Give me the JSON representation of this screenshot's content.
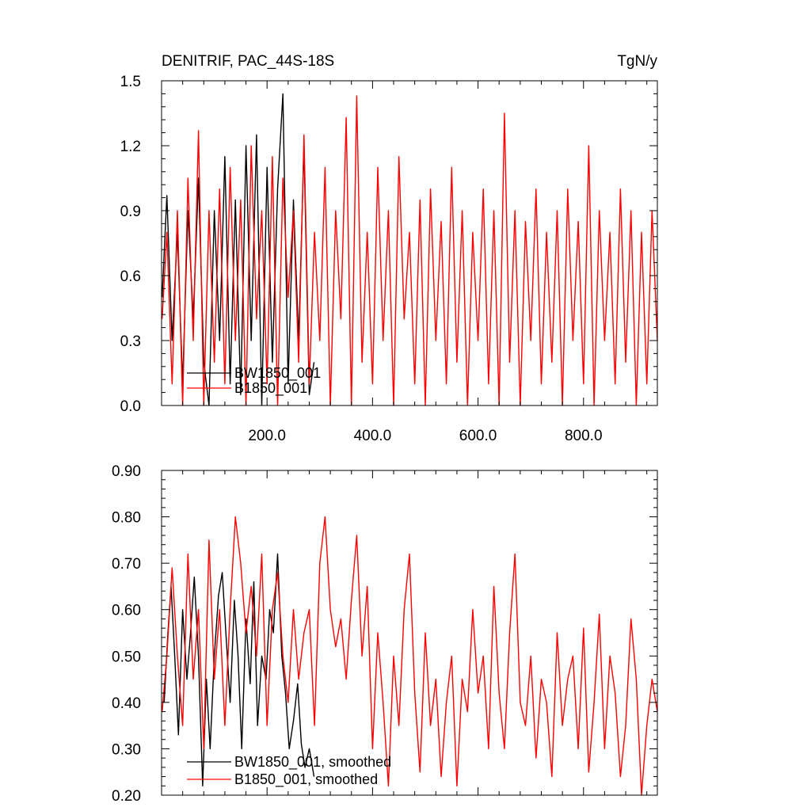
{
  "chart_data": [
    {
      "type": "line",
      "title_left": "DENITRIF, PAC_44S-18S",
      "title_right": "TgN/y",
      "xlim": [
        0,
        940
      ],
      "ylim": [
        0.0,
        1.5
      ],
      "x_ticks": [
        200,
        400,
        600,
        800
      ],
      "x_tick_labels": [
        "200.0",
        "400.0",
        "600.0",
        "800.0"
      ],
      "y_ticks": [
        0.0,
        0.3,
        0.6,
        0.9,
        1.2,
        1.5
      ],
      "y_tick_labels": [
        "0.0",
        "0.3",
        "0.6",
        "0.9",
        "1.2",
        "1.5"
      ],
      "legend": [
        "BW1850_001",
        "B1850_001"
      ],
      "legend_position": "bottom-left",
      "series": [
        {
          "name": "BW1850_001",
          "color": "#000000",
          "x": [
            1,
            10,
            20,
            30,
            40,
            50,
            60,
            70,
            80,
            90,
            100,
            110,
            120,
            130,
            140,
            150,
            160,
            170,
            180,
            190,
            200,
            210,
            220,
            230,
            240,
            250,
            260,
            270,
            280,
            289
          ],
          "values": [
            0.5,
            0.97,
            0.3,
            0.8,
            0.1,
            0.9,
            0.4,
            1.05,
            0.2,
            0.0,
            0.9,
            0.3,
            1.15,
            0.1,
            0.95,
            0.05,
            1.2,
            0.3,
            1.25,
            0.0,
            1.1,
            0.2,
            1.0,
            1.44,
            0.1,
            0.95,
            0.3,
            1.2,
            0.05,
            0.2
          ]
        },
        {
          "name": "B1850_001",
          "color": "#ff0000",
          "x": [
            1,
            10,
            20,
            30,
            40,
            50,
            60,
            70,
            80,
            90,
            100,
            110,
            120,
            130,
            140,
            150,
            160,
            170,
            180,
            190,
            200,
            210,
            220,
            230,
            240,
            250,
            260,
            270,
            280,
            290,
            300,
            310,
            320,
            330,
            340,
            350,
            360,
            370,
            380,
            390,
            400,
            410,
            420,
            430,
            440,
            450,
            460,
            470,
            480,
            490,
            500,
            510,
            520,
            530,
            540,
            550,
            560,
            570,
            580,
            590,
            600,
            610,
            620,
            630,
            640,
            650,
            660,
            670,
            680,
            690,
            700,
            710,
            720,
            730,
            740,
            750,
            760,
            770,
            780,
            790,
            800,
            810,
            820,
            830,
            840,
            850,
            860,
            870,
            880,
            890,
            900,
            910,
            920,
            930,
            940
          ],
          "values": [
            0.4,
            0.8,
            0.1,
            0.9,
            0.0,
            1.05,
            0.3,
            1.27,
            0.0,
            0.9,
            0.2,
            1.0,
            0.1,
            1.1,
            0.3,
            0.95,
            0.0,
            1.2,
            0.4,
            0.9,
            0.1,
            1.15,
            0.0,
            1.05,
            0.5,
            0.9,
            0.2,
            1.25,
            0.1,
            0.8,
            0.3,
            1.1,
            0.0,
            0.9,
            0.4,
            1.33,
            0.0,
            1.43,
            0.2,
            0.8,
            0.1,
            1.1,
            0.3,
            0.9,
            0.0,
            1.15,
            0.4,
            0.8,
            0.1,
            0.95,
            0.0,
            1.0,
            0.3,
            0.85,
            0.1,
            1.1,
            0.2,
            0.9,
            0.0,
            0.8,
            0.3,
            1.0,
            0.1,
            0.9,
            0.0,
            1.35,
            0.2,
            0.9,
            0.0,
            0.85,
            0.3,
            1.0,
            0.1,
            0.8,
            0.2,
            0.9,
            0.0,
            1.0,
            0.3,
            0.85,
            0.1,
            1.2,
            0.0,
            0.9,
            0.3,
            0.8,
            0.1,
            1.0,
            0.2,
            0.9,
            0.0,
            0.8,
            0.1,
            0.9,
            0.3
          ]
        }
      ]
    },
    {
      "type": "line",
      "xlim": [
        0,
        940
      ],
      "ylim": [
        0.2,
        0.9
      ],
      "y_ticks": [
        0.2,
        0.3,
        0.4,
        0.5,
        0.6,
        0.7,
        0.8,
        0.9
      ],
      "y_tick_labels": [
        "0.20",
        "0.30",
        "0.40",
        "0.50",
        "0.60",
        "0.70",
        "0.80",
        "0.90"
      ],
      "legend": [
        "BW1850_001, smoothed",
        "B1850_001, smoothed"
      ],
      "legend_position": "bottom-left",
      "series": [
        {
          "name": "BW1850_001, smoothed",
          "color": "#000000",
          "x": [
            5,
            12,
            18,
            25,
            32,
            40,
            48,
            55,
            62,
            70,
            78,
            85,
            92,
            100,
            108,
            115,
            122,
            130,
            138,
            145,
            152,
            160,
            168,
            175,
            182,
            190,
            198,
            205,
            212,
            220,
            228,
            235,
            242,
            250,
            258,
            265,
            272,
            280,
            289
          ],
          "values": [
            0.4,
            0.55,
            0.65,
            0.5,
            0.33,
            0.6,
            0.45,
            0.55,
            0.67,
            0.5,
            0.22,
            0.45,
            0.3,
            0.5,
            0.63,
            0.68,
            0.55,
            0.4,
            0.62,
            0.5,
            0.3,
            0.58,
            0.44,
            0.66,
            0.35,
            0.5,
            0.45,
            0.6,
            0.55,
            0.72,
            0.5,
            0.42,
            0.3,
            0.36,
            0.44,
            0.31,
            0.26,
            0.3,
            0.24
          ]
        },
        {
          "name": "B1850_001, smoothed",
          "color": "#ff0000",
          "x": [
            1,
            10,
            20,
            30,
            40,
            50,
            60,
            70,
            80,
            90,
            100,
            110,
            120,
            130,
            140,
            150,
            160,
            170,
            180,
            190,
            200,
            210,
            220,
            230,
            240,
            250,
            260,
            270,
            280,
            290,
            300,
            310,
            320,
            330,
            340,
            350,
            360,
            370,
            380,
            390,
            400,
            410,
            420,
            430,
            440,
            450,
            460,
            470,
            480,
            490,
            500,
            510,
            520,
            530,
            540,
            550,
            560,
            570,
            580,
            590,
            600,
            610,
            620,
            630,
            640,
            650,
            660,
            670,
            680,
            690,
            700,
            710,
            720,
            730,
            740,
            750,
            760,
            770,
            780,
            790,
            800,
            810,
            820,
            830,
            840,
            850,
            860,
            870,
            880,
            890,
            900,
            910,
            920,
            930,
            940
          ],
          "values": [
            0.38,
            0.5,
            0.69,
            0.5,
            0.35,
            0.72,
            0.45,
            0.6,
            0.3,
            0.75,
            0.45,
            0.6,
            0.35,
            0.6,
            0.8,
            0.7,
            0.55,
            0.65,
            0.5,
            0.72,
            0.35,
            0.6,
            0.68,
            0.5,
            0.4,
            0.6,
            0.45,
            0.55,
            0.6,
            0.35,
            0.7,
            0.8,
            0.6,
            0.52,
            0.58,
            0.45,
            0.62,
            0.76,
            0.5,
            0.65,
            0.3,
            0.55,
            0.4,
            0.22,
            0.5,
            0.35,
            0.6,
            0.72,
            0.42,
            0.25,
            0.55,
            0.35,
            0.45,
            0.24,
            0.4,
            0.5,
            0.22,
            0.45,
            0.38,
            0.6,
            0.42,
            0.5,
            0.3,
            0.65,
            0.42,
            0.3,
            0.55,
            0.72,
            0.4,
            0.35,
            0.5,
            0.28,
            0.45,
            0.4,
            0.24,
            0.55,
            0.35,
            0.45,
            0.5,
            0.3,
            0.56,
            0.25,
            0.4,
            0.59,
            0.3,
            0.5,
            0.42,
            0.24,
            0.35,
            0.58,
            0.45,
            0.2,
            0.35,
            0.45,
            0.38
          ]
        }
      ]
    }
  ]
}
